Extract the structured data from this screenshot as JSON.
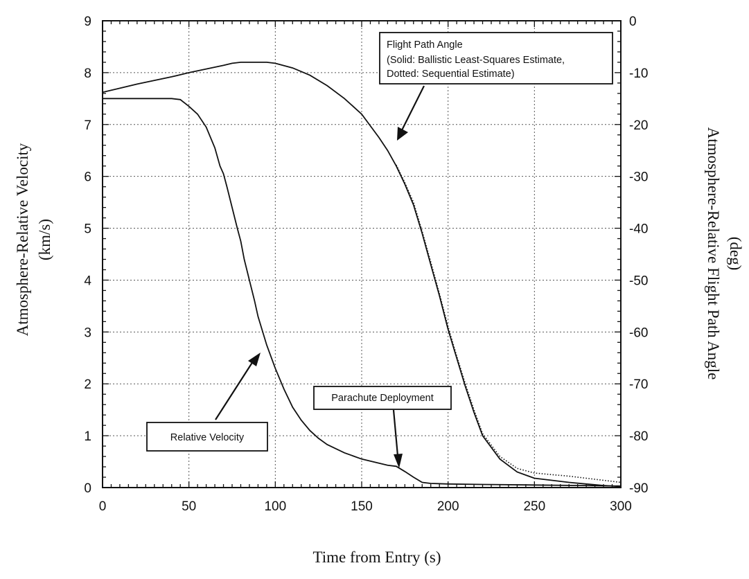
{
  "chart_data": {
    "type": "line",
    "title": "",
    "xlabel": "Time from Entry (s)",
    "ylabel_left": [
      "Atmosphere-Relative Velocity",
      "(km/s)"
    ],
    "ylabel_right": [
      "Atmosphere-Relative Flight Path Angle",
      "(deg)"
    ],
    "xlim": [
      0,
      300
    ],
    "ylim_left": [
      0,
      9
    ],
    "ylim_right": [
      -90,
      0
    ],
    "grid": true,
    "x_ticks": [
      "0",
      "50",
      "100",
      "150",
      "200",
      "250",
      "300"
    ],
    "y_left_ticks": [
      "0",
      "1",
      "2",
      "3",
      "4",
      "5",
      "6",
      "7",
      "8",
      "9"
    ],
    "y_right_ticks": [
      "-90",
      "-80",
      "-70",
      "-60",
      "-50",
      "-40",
      "-30",
      "-20",
      "-10",
      "0"
    ],
    "series": [
      {
        "axis": "left",
        "style": "solid",
        "x": [
          0,
          20,
          40,
          45,
          50,
          55,
          60,
          65,
          68,
          70,
          72,
          75,
          78,
          80,
          82,
          85,
          88,
          90,
          95,
          100,
          105,
          110,
          115,
          120,
          125,
          130,
          140,
          150,
          160,
          165,
          170,
          175,
          180,
          185,
          190,
          200,
          220,
          250,
          275,
          300
        ],
        "y": [
          7.5,
          7.5,
          7.5,
          7.48,
          7.35,
          7.2,
          6.95,
          6.55,
          6.2,
          6.05,
          5.8,
          5.4,
          5.0,
          4.75,
          4.4,
          4.0,
          3.6,
          3.3,
          2.75,
          2.3,
          1.9,
          1.55,
          1.3,
          1.1,
          0.95,
          0.83,
          0.67,
          0.55,
          0.47,
          0.43,
          0.41,
          0.31,
          0.2,
          0.1,
          0.08,
          0.07,
          0.06,
          0.05,
          0.04,
          0.03
        ]
      },
      {
        "axis": "right",
        "style": "solid",
        "x": [
          0,
          10,
          20,
          30,
          40,
          50,
          60,
          70,
          75,
          80,
          90,
          95,
          100,
          110,
          120,
          130,
          140,
          150,
          160,
          165,
          170,
          175,
          180,
          185,
          190,
          195,
          200,
          205,
          210,
          215,
          220,
          230,
          240,
          250,
          260,
          270,
          280,
          290,
          300
        ],
        "y": [
          -13.8,
          -13.0,
          -12.2,
          -11.5,
          -10.8,
          -10.0,
          -9.3,
          -8.6,
          -8.2,
          -8.0,
          -8.0,
          -8.0,
          -8.2,
          -9.1,
          -10.5,
          -12.5,
          -15.0,
          -18.0,
          -22.5,
          -25.0,
          -28.0,
          -31.5,
          -35.5,
          -41.0,
          -47.0,
          -53.0,
          -59.5,
          -65.0,
          -70.5,
          -75.5,
          -80.0,
          -84.5,
          -87.0,
          -88.2,
          -88.6,
          -89.0,
          -89.3,
          -89.6,
          -89.8
        ]
      },
      {
        "axis": "right",
        "style": "dotted",
        "x": [
          170,
          175,
          180,
          185,
          190,
          195,
          200,
          205,
          210,
          215,
          220,
          230,
          240,
          250,
          260,
          270,
          280,
          290,
          300
        ],
        "y": [
          -27.8,
          -31.2,
          -35.0,
          -40.6,
          -46.5,
          -52.6,
          -59.0,
          -64.6,
          -70.0,
          -75.0,
          -79.6,
          -84.0,
          -86.3,
          -87.2,
          -87.5,
          -87.8,
          -88.2,
          -88.6,
          -89.0
        ]
      }
    ],
    "annotations": [
      {
        "lines": [
          "Flight Path Angle",
          "(Solid: Ballistic Least-Squares Estimate,",
          "Dotted: Sequential Estimate)"
        ]
      },
      {
        "lines": [
          "Parachute Deployment"
        ]
      },
      {
        "lines": [
          "Relative Velocity"
        ]
      }
    ]
  }
}
